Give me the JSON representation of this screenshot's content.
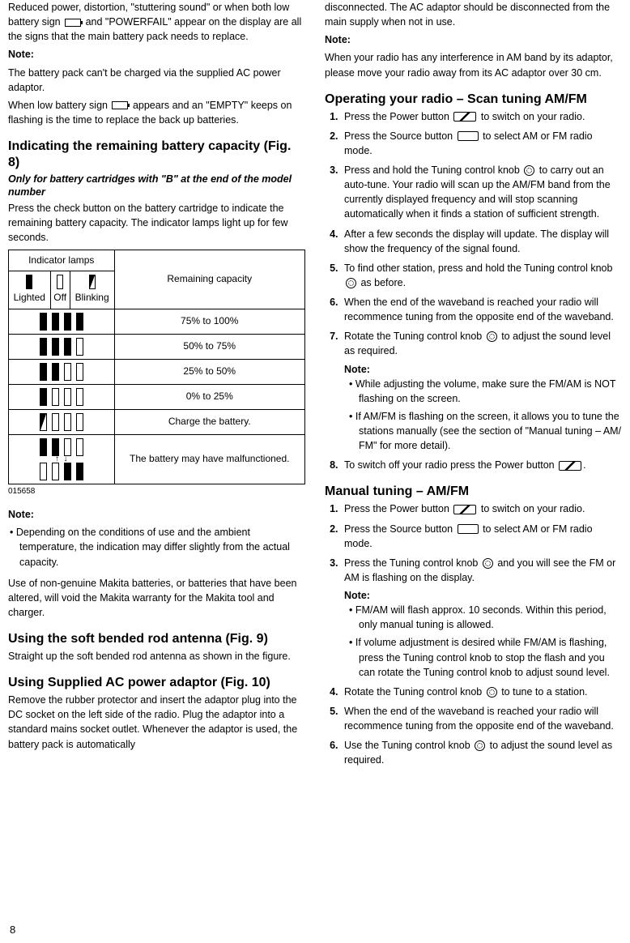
{
  "page_num": "8",
  "left": {
    "para1_a": "Reduced power, distortion, \"stuttering sound\" or when both low battery sign ",
    "para1_b": " and \"POWERFAIL\" appear on the display are all the signs that the main battery pack needs to replace.",
    "note1_label": "Note:",
    "note1_text": "The battery pack can't be charged via the supplied AC power adaptor.",
    "para2_a": "When low battery sign ",
    "para2_b": " appears and an \"EMPTY\" keeps on flashing is the time to replace the back up batteries.",
    "h_capacity": "Indicating the remaining battery capacity (Fig. 8)",
    "sub_capacity": "Only for battery cartridges with \"B\" at the end of the model number",
    "capacity_intro": "Press the check button on the battery cartridge to indicate the remaining battery capacity. The indicator lamps light up for few seconds.",
    "table": {
      "header_lamps": "Indicator lamps",
      "header_capacity": "Remaining capacity",
      "col_lighted": "Lighted",
      "col_off": "Off",
      "col_blinking": "Blinking",
      "rows": [
        {
          "bars": [
            "lit",
            "lit",
            "lit",
            "lit"
          ],
          "cap": "75% to 100%"
        },
        {
          "bars": [
            "lit",
            "lit",
            "lit",
            "off"
          ],
          "cap": "50% to 75%"
        },
        {
          "bars": [
            "lit",
            "lit",
            "off",
            "off"
          ],
          "cap": "25% to 50%"
        },
        {
          "bars": [
            "lit",
            "off",
            "off",
            "off"
          ],
          "cap": "0% to 25%"
        },
        {
          "bars": [
            "blink",
            "off",
            "off",
            "off"
          ],
          "cap": "Charge the battery."
        }
      ],
      "malf_cap": "The battery may have malfunctioned."
    },
    "table_id": "015658",
    "note2_label": "Note:",
    "note2_bullet": "Depending on the conditions of use and the ambient temperature, the indication may differ slightly from the actual capacity.",
    "warranty": "Use of non-genuine Makita batteries, or batteries that have been altered, will void the Makita warranty for the Makita tool and charger.",
    "h_antenna": "Using the soft bended rod antenna (Fig. 9)",
    "antenna_text": "Straight up the soft bended rod antenna as shown in the figure.",
    "h_ac": "Using Supplied AC power adaptor (Fig. 10)",
    "ac_text": "Remove the rubber protector and insert the adaptor plug into the DC socket on the left side of the radio. Plug the adaptor into a standard mains socket outlet. Whenever the adaptor is used, the battery pack is automatically"
  },
  "right": {
    "para_cont": "disconnected. The AC adaptor should be disconnected from the main supply when not in use.",
    "note3_label": "Note:",
    "note3_text": "When your radio has any interference in AM band by its adaptor, please move your radio away from its AC adaptor over 30 cm.",
    "h_scan": "Operating your radio – Scan tuning AM/FM",
    "scan": {
      "s1a": "Press the Power button ",
      "s1b": " to switch on your radio.",
      "s2a": "Press the Source button ",
      "s2b": " to select AM or FM radio mode.",
      "s3a": "Press and hold the Tuning control knob ",
      "s3b": " to carry out an auto-tune. Your radio will scan up the AM/FM band from the currently displayed frequency and will stop scanning automatically when it finds a station of sufficient strength.",
      "s4": "After a few seconds the display will update. The display will show the frequency of the signal found.",
      "s5a": "To find other station, press and hold the Tuning control knob ",
      "s5b": " as before.",
      "s6": "When the end of the waveband is reached your radio will recommence tuning from the opposite end of the waveband.",
      "s7a": "Rotate the Tuning control knob ",
      "s7b": " to adjust the sound level as required.",
      "s7_note": "Note:",
      "s7_b1": "While adjusting the volume, make sure the FM/AM is NOT flashing on the screen.",
      "s7_b2": "If AM/FM is flashing on the screen, it allows you to tune the stations manually (see the section of \"Manual tuning – AM/ FM\" for more detail).",
      "s8a": "To switch off your radio press the Power button ",
      "s8b": "."
    },
    "h_manual": "Manual tuning – AM/FM",
    "manual": {
      "m1a": "Press the Power button ",
      "m1b": " to switch on your radio.",
      "m2a": "Press the Source button ",
      "m2b": " to select AM or FM radio mode.",
      "m3a": "Press the Tuning control knob ",
      "m3b": " and you will see the FM or AM is flashing on the display.",
      "m3_note": "Note:",
      "m3_b1": "FM/AM will flash approx. 10 seconds. Within this period, only manual tuning is allowed.",
      "m3_b2": "If volume adjustment is desired while FM/AM is flashing, press the Tuning control knob to stop the flash and you can rotate the Tuning control knob to adjust sound level.",
      "m4a": "Rotate the Tuning control knob ",
      "m4b": " to tune to a station.",
      "m5": "When the end of the waveband is reached your radio will recommence tuning from the opposite end of the waveband.",
      "m6a": "Use the Tuning control knob ",
      "m6b": " to adjust the sound level as required."
    }
  }
}
